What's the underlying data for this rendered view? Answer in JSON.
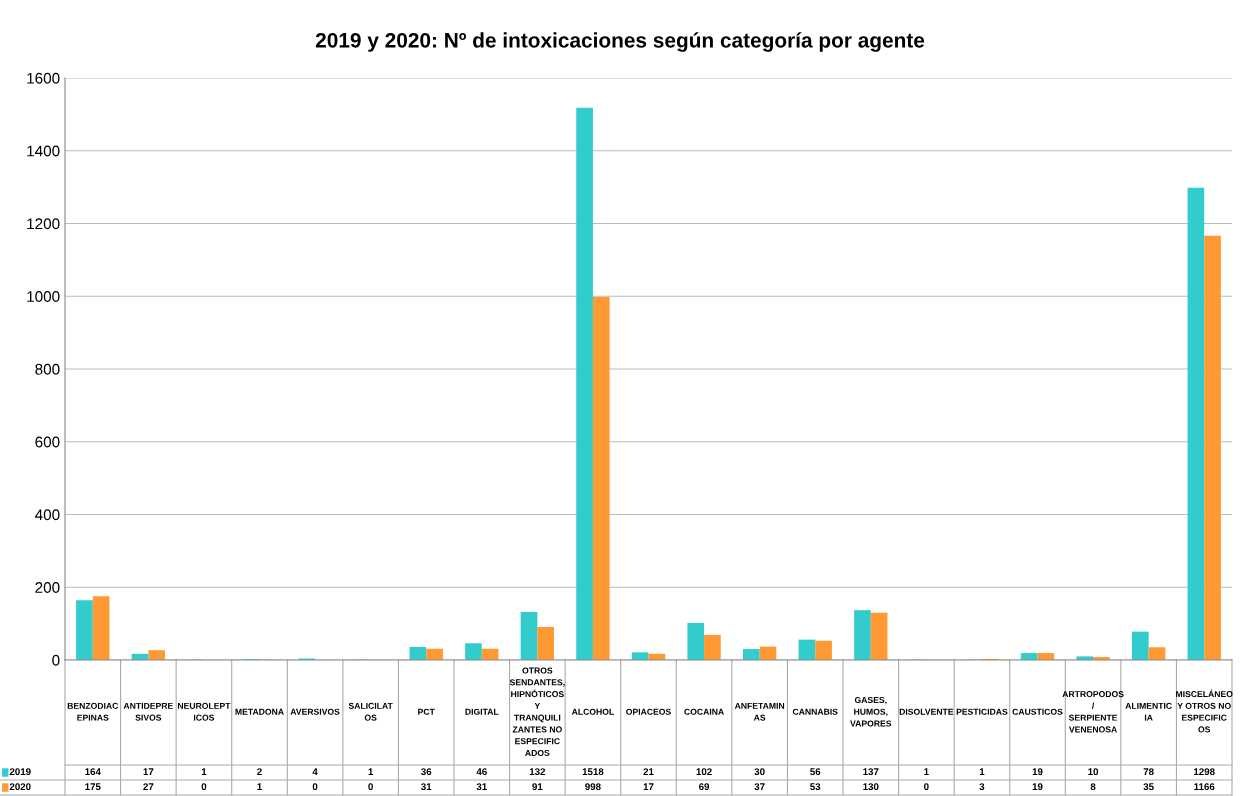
{
  "chart_data": {
    "type": "bar",
    "title": "2019 y 2020: Nº de intoxicaciones según categoría por agente",
    "categories": [
      "BENZODIACEPINAS",
      "ANTIDEPRESIVOS",
      "NEUROLEPTICOS",
      "METADONA",
      "AVERSIVOS",
      "SALICILATOS",
      "PCT",
      "DIGITAL",
      "OTROS SENDANTES, HIPNÓTICOS Y TRANQUILIZANTES NO ESPECIFICADOS",
      "ALCOHOL",
      "OPIACEOS",
      "COCAINA",
      "ANFETAMINAS",
      "CANNABIS",
      "GASES, HUMOS, VAPORES",
      "DISOLVENTE",
      "PESTICIDAS",
      "CAUSTICOS",
      "ARTROPODOS / SERPIENTE VENENOSA",
      "ALIMENTICIA",
      "MISCELÁNEO Y OTROS NO ESPECIFICOS"
    ],
    "series": [
      {
        "name": "2019",
        "color": "#33cccc",
        "values": [
          164,
          17,
          1,
          2,
          4,
          1,
          36,
          46,
          132,
          1518,
          21,
          102,
          30,
          56,
          137,
          1,
          1,
          19,
          10,
          78,
          1298
        ]
      },
      {
        "name": "2020",
        "color": "#ff9933",
        "values": [
          175,
          27,
          0,
          1,
          0,
          0,
          31,
          31,
          91,
          998,
          17,
          69,
          37,
          53,
          130,
          0,
          3,
          19,
          8,
          35,
          1166
        ]
      }
    ],
    "ylim": [
      0,
      1600
    ],
    "yticks": [
      0,
      200,
      400,
      600,
      800,
      1000,
      1200,
      1400,
      1600
    ],
    "grid": "y",
    "legend": "bottom left",
    "data_labels": true
  }
}
